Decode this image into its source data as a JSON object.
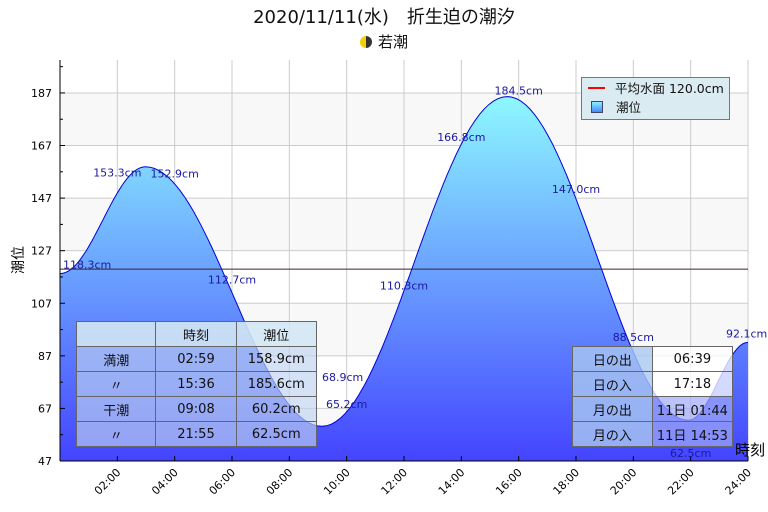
{
  "title": "2020/11/11(水)　折生迫の潮汐",
  "subtitle": {
    "moon_icon": "first-quarter-moon",
    "tide_type": "若潮"
  },
  "chart_data": {
    "type": "area",
    "title": "2020/11/11(水)　折生迫の潮汐",
    "xlabel": "時刻",
    "ylabel": "潮位",
    "xlim": [
      0,
      24
    ],
    "ylim": [
      47,
      200
    ],
    "x_ticks": [
      2,
      4,
      6,
      8,
      10,
      12,
      14,
      16,
      18,
      20,
      22,
      24
    ],
    "x_tick_labels": [
      "02:00",
      "04:00",
      "06:00",
      "08:00",
      "10:00",
      "12:00",
      "14:00",
      "16:00",
      "18:00",
      "20:00",
      "22:00",
      "24:00"
    ],
    "y_ticks": [
      47,
      67,
      87,
      107,
      127,
      147,
      167,
      187
    ],
    "y_tick_labels": [
      "47",
      "67",
      "87",
      "107",
      "127",
      "147",
      "167",
      "187"
    ],
    "extrema": [
      [
        0,
        118.3
      ],
      [
        2.983,
        158.9
      ],
      [
        9.133,
        60.2
      ],
      [
        15.6,
        185.6
      ],
      [
        21.917,
        62.5
      ],
      [
        24,
        92.1
      ]
    ],
    "point_labels": [
      {
        "x": 0,
        "y": 118.3,
        "label": "118.3cm"
      },
      {
        "x": 2,
        "y": 153.3,
        "label": "153.3cm"
      },
      {
        "x": 4,
        "y": 152.9,
        "label": "152.9cm"
      },
      {
        "x": 6,
        "y": 112.7,
        "label": "112.7cm"
      },
      {
        "x": 8,
        "y": 68.9,
        "label": "68.9cm"
      },
      {
        "x": 10,
        "y": 65.2,
        "label": "65.2cm"
      },
      {
        "x": 12,
        "y": 110.3,
        "label": "110.3cm"
      },
      {
        "x": 14,
        "y": 166.8,
        "label": "166.8cm"
      },
      {
        "x": 16,
        "y": 184.5,
        "label": "184.5cm"
      },
      {
        "x": 18,
        "y": 147.0,
        "label": "147.0cm"
      },
      {
        "x": 20,
        "y": 88.5,
        "label": "88.5cm"
      },
      {
        "x": 22,
        "y": 62.5,
        "label": "62.5cm"
      },
      {
        "x": 24,
        "y": 92.1,
        "label": "92.1cm"
      }
    ],
    "mean_level": 120.0,
    "legend": {
      "placement": "top-right",
      "items": [
        "平均水面 120.0cm",
        "潮位"
      ]
    },
    "colors": {
      "fill_top": "#8ef8ff",
      "fill_bottom": "#4444ff",
      "line": "#0000dd",
      "mean_line": "#ff0000",
      "label": "#1a1aa0"
    },
    "grid": true
  },
  "tide_table": {
    "headers": [
      "",
      "時刻",
      "潮位"
    ],
    "rows": [
      [
        "満潮",
        "02:59",
        "158.9cm"
      ],
      [
        "〃",
        "15:36",
        "185.6cm"
      ],
      [
        "干潮",
        "09:08",
        "60.2cm"
      ],
      [
        "〃",
        "21:55",
        "62.5cm"
      ]
    ]
  },
  "sun_moon_table": {
    "rows": [
      [
        "日の出",
        "06:39"
      ],
      [
        "日の入",
        "17:18"
      ],
      [
        "月の出",
        "11日 01:44"
      ],
      [
        "月の入",
        "11日 14:53"
      ]
    ]
  }
}
